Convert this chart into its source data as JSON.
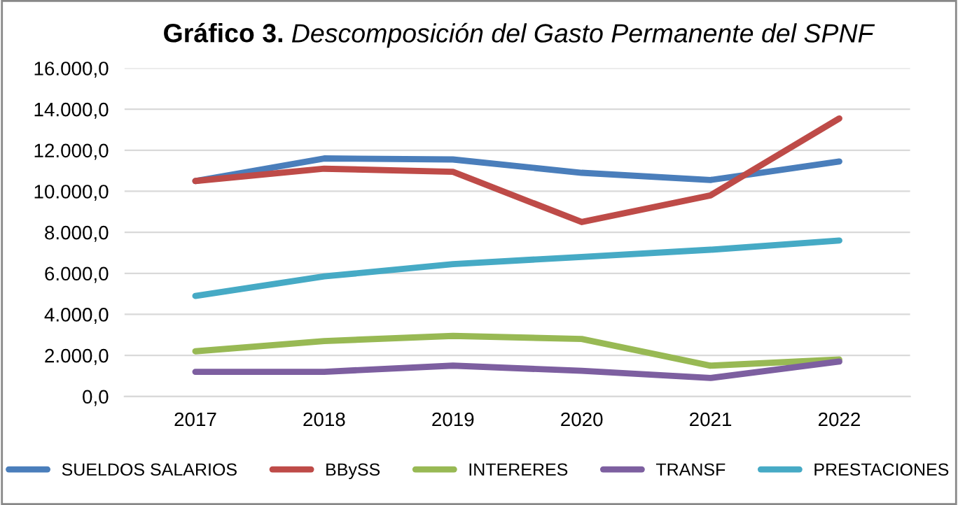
{
  "chart_data": {
    "type": "line",
    "title": "Gráfico 3.",
    "subtitle": "Descomposición del Gasto Permanente del SPNF",
    "categories": [
      "2017",
      "2018",
      "2019",
      "2020",
      "2021",
      "2022"
    ],
    "series": [
      {
        "name": "SUELDOS SALARIOS",
        "color": "#4a7ebb",
        "values": [
          10500,
          11600,
          11550,
          10900,
          10550,
          11450
        ]
      },
      {
        "name": "BBySS",
        "color": "#be4b48",
        "values": [
          10500,
          11100,
          10950,
          8500,
          9800,
          13550
        ]
      },
      {
        "name": "INTERERES",
        "color": "#98b954",
        "values": [
          2200,
          2700,
          2950,
          2800,
          1500,
          1800
        ]
      },
      {
        "name": "TRANSF",
        "color": "#7d5fa0",
        "values": [
          1200,
          1200,
          1500,
          1250,
          900,
          1700
        ]
      },
      {
        "name": "PRESTACIONES",
        "color": "#46aac5",
        "values": [
          4900,
          5850,
          6450,
          6800,
          7150,
          7600
        ]
      }
    ],
    "ylim": [
      0,
      16000
    ],
    "yticks": [
      {
        "value": 0,
        "label": "0,0"
      },
      {
        "value": 2000,
        "label": "2.000,0"
      },
      {
        "value": 4000,
        "label": "4.000,0"
      },
      {
        "value": 6000,
        "label": "6.000,0"
      },
      {
        "value": 8000,
        "label": "8.000,0"
      },
      {
        "value": 10000,
        "label": "10.000,0"
      },
      {
        "value": 12000,
        "label": "12.000,0"
      },
      {
        "value": 14000,
        "label": "14.000,0"
      },
      {
        "value": 16000,
        "label": "16.000,0"
      }
    ],
    "grid": "y",
    "legend": "bottom",
    "marker": "none",
    "line_style": "solid"
  }
}
